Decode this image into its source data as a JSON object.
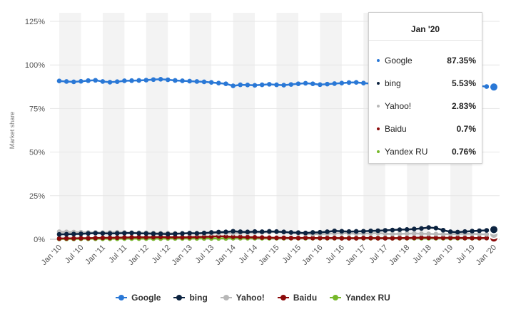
{
  "chart_data": {
    "type": "line",
    "ylabel": "Market share",
    "xlabel": "",
    "ylim": [
      0,
      125
    ],
    "yticks": [
      "0%",
      "25%",
      "50%",
      "75%",
      "100%",
      "125%"
    ],
    "x_tick_labels": [
      "Jan '10",
      "Jul '10",
      "Jan '11",
      "Jul '11",
      "Jan '12",
      "Jul '12",
      "Jan '13",
      "Jul '13",
      "Jan '14",
      "Jul '14",
      "Jan '15",
      "Jul '15",
      "Jan '16",
      "Jul '16",
      "Jan '17",
      "Jul '17",
      "Jan '18",
      "Jul '18",
      "Jan '19",
      "Jul '19",
      "Jan '20"
    ],
    "x": [
      "Jan '10",
      "Mar '10",
      "May '10",
      "Jul '10",
      "Sep '10",
      "Nov '10",
      "Jan '11",
      "Mar '11",
      "May '11",
      "Jul '11",
      "Sep '11",
      "Nov '11",
      "Jan '12",
      "Mar '12",
      "May '12",
      "Jul '12",
      "Sep '12",
      "Nov '12",
      "Jan '13",
      "Mar '13",
      "May '13",
      "Jul '13",
      "Sep '13",
      "Nov '13",
      "Jan '14",
      "Mar '14",
      "May '14",
      "Jul '14",
      "Sep '14",
      "Nov '14",
      "Jan '15",
      "Mar '15",
      "May '15",
      "Jul '15",
      "Sep '15",
      "Nov '15",
      "Jan '16",
      "Mar '16",
      "May '16",
      "Jul '16",
      "Sep '16",
      "Nov '16",
      "Jan '17",
      "Mar '17",
      "May '17",
      "Jul '17",
      "Sep '17",
      "Nov '17",
      "Jan '18",
      "Mar '18",
      "May '18",
      "Jul '18",
      "Sep '18",
      "Nov '18",
      "Jan '19",
      "Mar '19",
      "May '19",
      "Jul '19",
      "Sep '19",
      "Nov '19",
      "Jan '20"
    ],
    "grid": "alternating vertical bands",
    "legend_position": "bottom",
    "series": [
      {
        "name": "Google",
        "color": "#2a78d6",
        "values": [
          90.8,
          90.5,
          90.3,
          90.6,
          91,
          91.2,
          90.5,
          90.1,
          90.4,
          90.9,
          91,
          91.1,
          91.3,
          91.6,
          91.8,
          91.5,
          91.1,
          90.9,
          90.7,
          90.5,
          90.3,
          90,
          89.6,
          89.2,
          88,
          88.6,
          88.5,
          88.3,
          88.6,
          88.9,
          88.6,
          88.4,
          88.8,
          89.2,
          89.5,
          89.2,
          88.7,
          89,
          89.3,
          89.6,
          89.9,
          90,
          89.6,
          89.3,
          89.1,
          88.9,
          88.6,
          88.8,
          88.7,
          88.5,
          88.6,
          88.4,
          88.3,
          88.6,
          88.4,
          88.2,
          88.5,
          88.2,
          88,
          87.6,
          87.35
        ]
      },
      {
        "name": "bing",
        "color": "#0c2340",
        "values": [
          2.8,
          2.9,
          3,
          3.1,
          3.3,
          3.5,
          3.4,
          3.3,
          3.4,
          3.5,
          3.6,
          3.4,
          3.3,
          3.2,
          3.1,
          3,
          3.1,
          3.3,
          3.5,
          3.4,
          3.6,
          3.9,
          4.1,
          4.2,
          4.6,
          4.3,
          4.2,
          4.4,
          4.3,
          4.5,
          4.4,
          4.2,
          3.9,
          3.8,
          3.6,
          3.9,
          4,
          4.3,
          4.8,
          4.6,
          4.4,
          4.5,
          4.6,
          4.8,
          4.9,
          5.1,
          5.3,
          5.5,
          5.6,
          5.9,
          6.2,
          6.7,
          6.4,
          5.2,
          4.3,
          4.1,
          4.4,
          4.7,
          4.9,
          5.1,
          5.53
        ]
      },
      {
        "name": "Yahoo!",
        "color": "#b8b8b8",
        "values": [
          4.3,
          4.2,
          4.1,
          4,
          3.9,
          3.9,
          3.8,
          3.9,
          4,
          3.9,
          3.8,
          3.7,
          3.7,
          3.6,
          3.5,
          3.5,
          3.4,
          3.3,
          3.3,
          3.2,
          3.3,
          3.4,
          3.3,
          3.5,
          3.4,
          3.6,
          3.7,
          3.8,
          3.9,
          4,
          4.2,
          4,
          3.8,
          3.4,
          3.1,
          2.9,
          3,
          3.2,
          3.4,
          3.5,
          3.3,
          3.2,
          3.3,
          3.4,
          3.5,
          3.2,
          3,
          3.1,
          3.2,
          3.3,
          3.2,
          3.1,
          3,
          2.9,
          3,
          3.1,
          3.2,
          3.1,
          2.9,
          2.8,
          2.83
        ]
      },
      {
        "name": "Baidu",
        "color": "#8b0a0a",
        "values": [
          0.4,
          0.5,
          0.5,
          0.6,
          0.6,
          0.7,
          0.8,
          0.8,
          0.9,
          1,
          1.1,
          1.2,
          1.1,
          1.2,
          1.3,
          1.2,
          1.2,
          1.1,
          1.2,
          1.3,
          1.4,
          1.5,
          1.7,
          1.6,
          1.4,
          1.3,
          1.2,
          1.1,
          1,
          0.9,
          0.8,
          0.8,
          0.7,
          0.7,
          0.8,
          0.7,
          0.7,
          0.7,
          0.7,
          0.6,
          0.6,
          0.6,
          0.7,
          0.7,
          0.6,
          0.6,
          0.6,
          0.7,
          0.7,
          0.8,
          0.9,
          0.9,
          0.8,
          0.8,
          0.8,
          0.8,
          0.7,
          0.7,
          0.7,
          0.7,
          0.7
        ]
      },
      {
        "name": "Yandex RU",
        "color": "#76b82a",
        "values": [
          0.2,
          0.2,
          0.2,
          0.3,
          0.3,
          0.3,
          0.3,
          0.3,
          0.3,
          0.4,
          0.4,
          0.4,
          0.4,
          0.4,
          0.4,
          0.5,
          0.5,
          0.5,
          0.5,
          0.5,
          0.5,
          0.5,
          0.5,
          0.5,
          0.6,
          0.6,
          0.6,
          0.6,
          0.6,
          0.6,
          0.6,
          0.6,
          0.6,
          0.6,
          0.6,
          0.6,
          0.6,
          0.6,
          0.6,
          0.6,
          0.6,
          0.6,
          0.6,
          0.6,
          0.6,
          0.6,
          0.6,
          0.6,
          0.6,
          0.6,
          0.6,
          0.6,
          0.6,
          0.6,
          0.6,
          0.6,
          0.6,
          0.6,
          0.6,
          0.7,
          0.76
        ]
      }
    ]
  },
  "tooltip": {
    "title": "Jan '20",
    "rows": [
      {
        "name": "Google",
        "value": "87.35%",
        "color": "#2a78d6"
      },
      {
        "name": "bing",
        "value": "5.53%",
        "color": "#0c2340"
      },
      {
        "name": "Yahoo!",
        "value": "2.83%",
        "color": "#b8b8b8"
      },
      {
        "name": "Baidu",
        "value": "0.7%",
        "color": "#8b0a0a"
      },
      {
        "name": "Yandex RU",
        "value": "0.76%",
        "color": "#76b82a"
      }
    ]
  },
  "legend": [
    {
      "name": "Google",
      "color": "#2a78d6"
    },
    {
      "name": "bing",
      "color": "#0c2340"
    },
    {
      "name": "Yahoo!",
      "color": "#b8b8b8"
    },
    {
      "name": "Baidu",
      "color": "#8b0a0a"
    },
    {
      "name": "Yandex RU",
      "color": "#76b82a"
    }
  ]
}
